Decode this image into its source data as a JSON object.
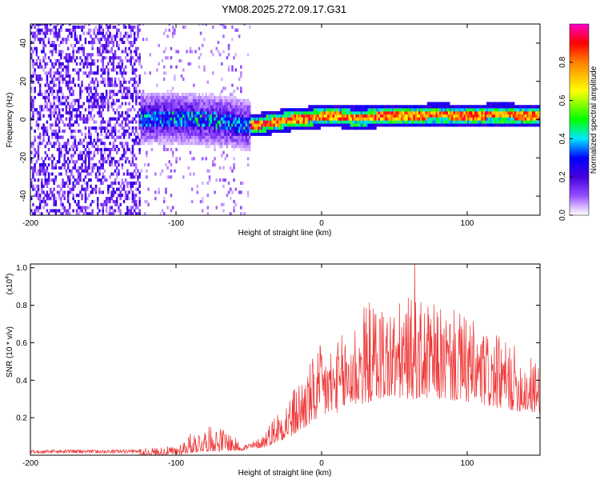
{
  "title": "YM08.2025.272.09.17.G31",
  "chart_data": [
    {
      "type": "heatmap",
      "xlabel": "Height of straight line (km)",
      "ylabel": "Frequency (Hz)",
      "xlim": [
        -200,
        150
      ],
      "ylim": [
        -50,
        50
      ],
      "xticks": [
        -200,
        -100,
        0,
        100
      ],
      "xtick_labels": [
        "-200",
        "-100",
        "0",
        "100"
      ],
      "yticks": [
        -40,
        -20,
        0,
        20,
        40
      ],
      "ytick_labels": [
        "-40",
        "-20",
        "0",
        "20",
        "40"
      ],
      "colorbar": {
        "label": "Normalized spectral amplitude",
        "range": [
          0,
          1
        ],
        "ticks": [
          0.0,
          0.2,
          0.4,
          0.6,
          0.8
        ],
        "tick_labels": [
          "0.0",
          "0.2",
          "0.4",
          "0.6",
          "0.8"
        ],
        "colors": [
          "#ffffff",
          "#8000ff",
          "#0000ff",
          "#00ffff",
          "#00ff00",
          "#ffff00",
          "#ff8000",
          "#ff0000",
          "#ff00ff"
        ]
      },
      "regions": [
        {
          "x_range": [
            -200,
            -125
          ],
          "freq_range": [
            -50,
            50
          ],
          "amplitude": 0.1,
          "pattern": "scattered noise"
        },
        {
          "x_range": [
            -125,
            -50
          ],
          "freq_range": [
            -15,
            15
          ],
          "amplitude": 0.25,
          "pattern": "broad band"
        },
        {
          "x_range": [
            -50,
            150
          ],
          "freq_range": [
            -5,
            5
          ],
          "amplitude": 0.85,
          "pattern": "narrow line near 0 Hz"
        }
      ],
      "ridge": {
        "x": [
          -125,
          -100,
          -75,
          -50,
          -40,
          -25,
          -10,
          0,
          10,
          25,
          40,
          60,
          80,
          100,
          120,
          150
        ],
        "y": [
          0,
          0,
          -1,
          -4,
          -3,
          -1,
          0,
          1,
          1,
          0,
          1,
          1,
          2,
          1,
          2,
          1
        ]
      }
    },
    {
      "type": "line",
      "xlabel": "Height of straight line (km)",
      "ylabel": "SNR (10 * v/v)",
      "y_multiplier_label": "(x10",
      "y_multiplier_exp": "4",
      "xlim": [
        -200,
        150
      ],
      "ylim": [
        0,
        1.02
      ],
      "xticks": [
        -200,
        -100,
        0,
        100
      ],
      "xtick_labels": [
        "-200",
        "-100",
        "0",
        "100"
      ],
      "yticks": [
        0.2,
        0.4,
        0.6,
        0.8,
        1.0
      ],
      "ytick_labels": [
        "0.2",
        "0.4",
        "0.6",
        "0.8",
        "1.0"
      ],
      "color": "#ee3333",
      "envelope": {
        "x": [
          -200,
          -150,
          -120,
          -100,
          -90,
          -75,
          -65,
          -55,
          -45,
          -40,
          -30,
          -20,
          -10,
          0,
          10,
          20,
          30,
          40,
          50,
          60,
          70,
          80,
          90,
          100,
          110,
          120,
          130,
          140,
          150
        ],
        "y": [
          0.02,
          0.02,
          0.04,
          0.05,
          0.12,
          0.16,
          0.14,
          0.06,
          0.08,
          0.12,
          0.25,
          0.35,
          0.48,
          0.6,
          0.6,
          0.72,
          0.82,
          0.84,
          0.8,
          0.85,
          0.82,
          0.8,
          0.78,
          0.75,
          0.68,
          0.64,
          0.6,
          0.55,
          0.5
        ]
      },
      "baseline": {
        "x": [
          -200,
          -100,
          -80,
          -60,
          -40,
          -20,
          0,
          20,
          40,
          60,
          80,
          100,
          120,
          150
        ],
        "y": [
          0.0,
          0.0,
          0.02,
          0.02,
          0.04,
          0.1,
          0.2,
          0.25,
          0.3,
          0.3,
          0.3,
          0.28,
          0.25,
          0.22
        ]
      },
      "peak": {
        "x": 64,
        "y": 1.02
      }
    }
  ]
}
